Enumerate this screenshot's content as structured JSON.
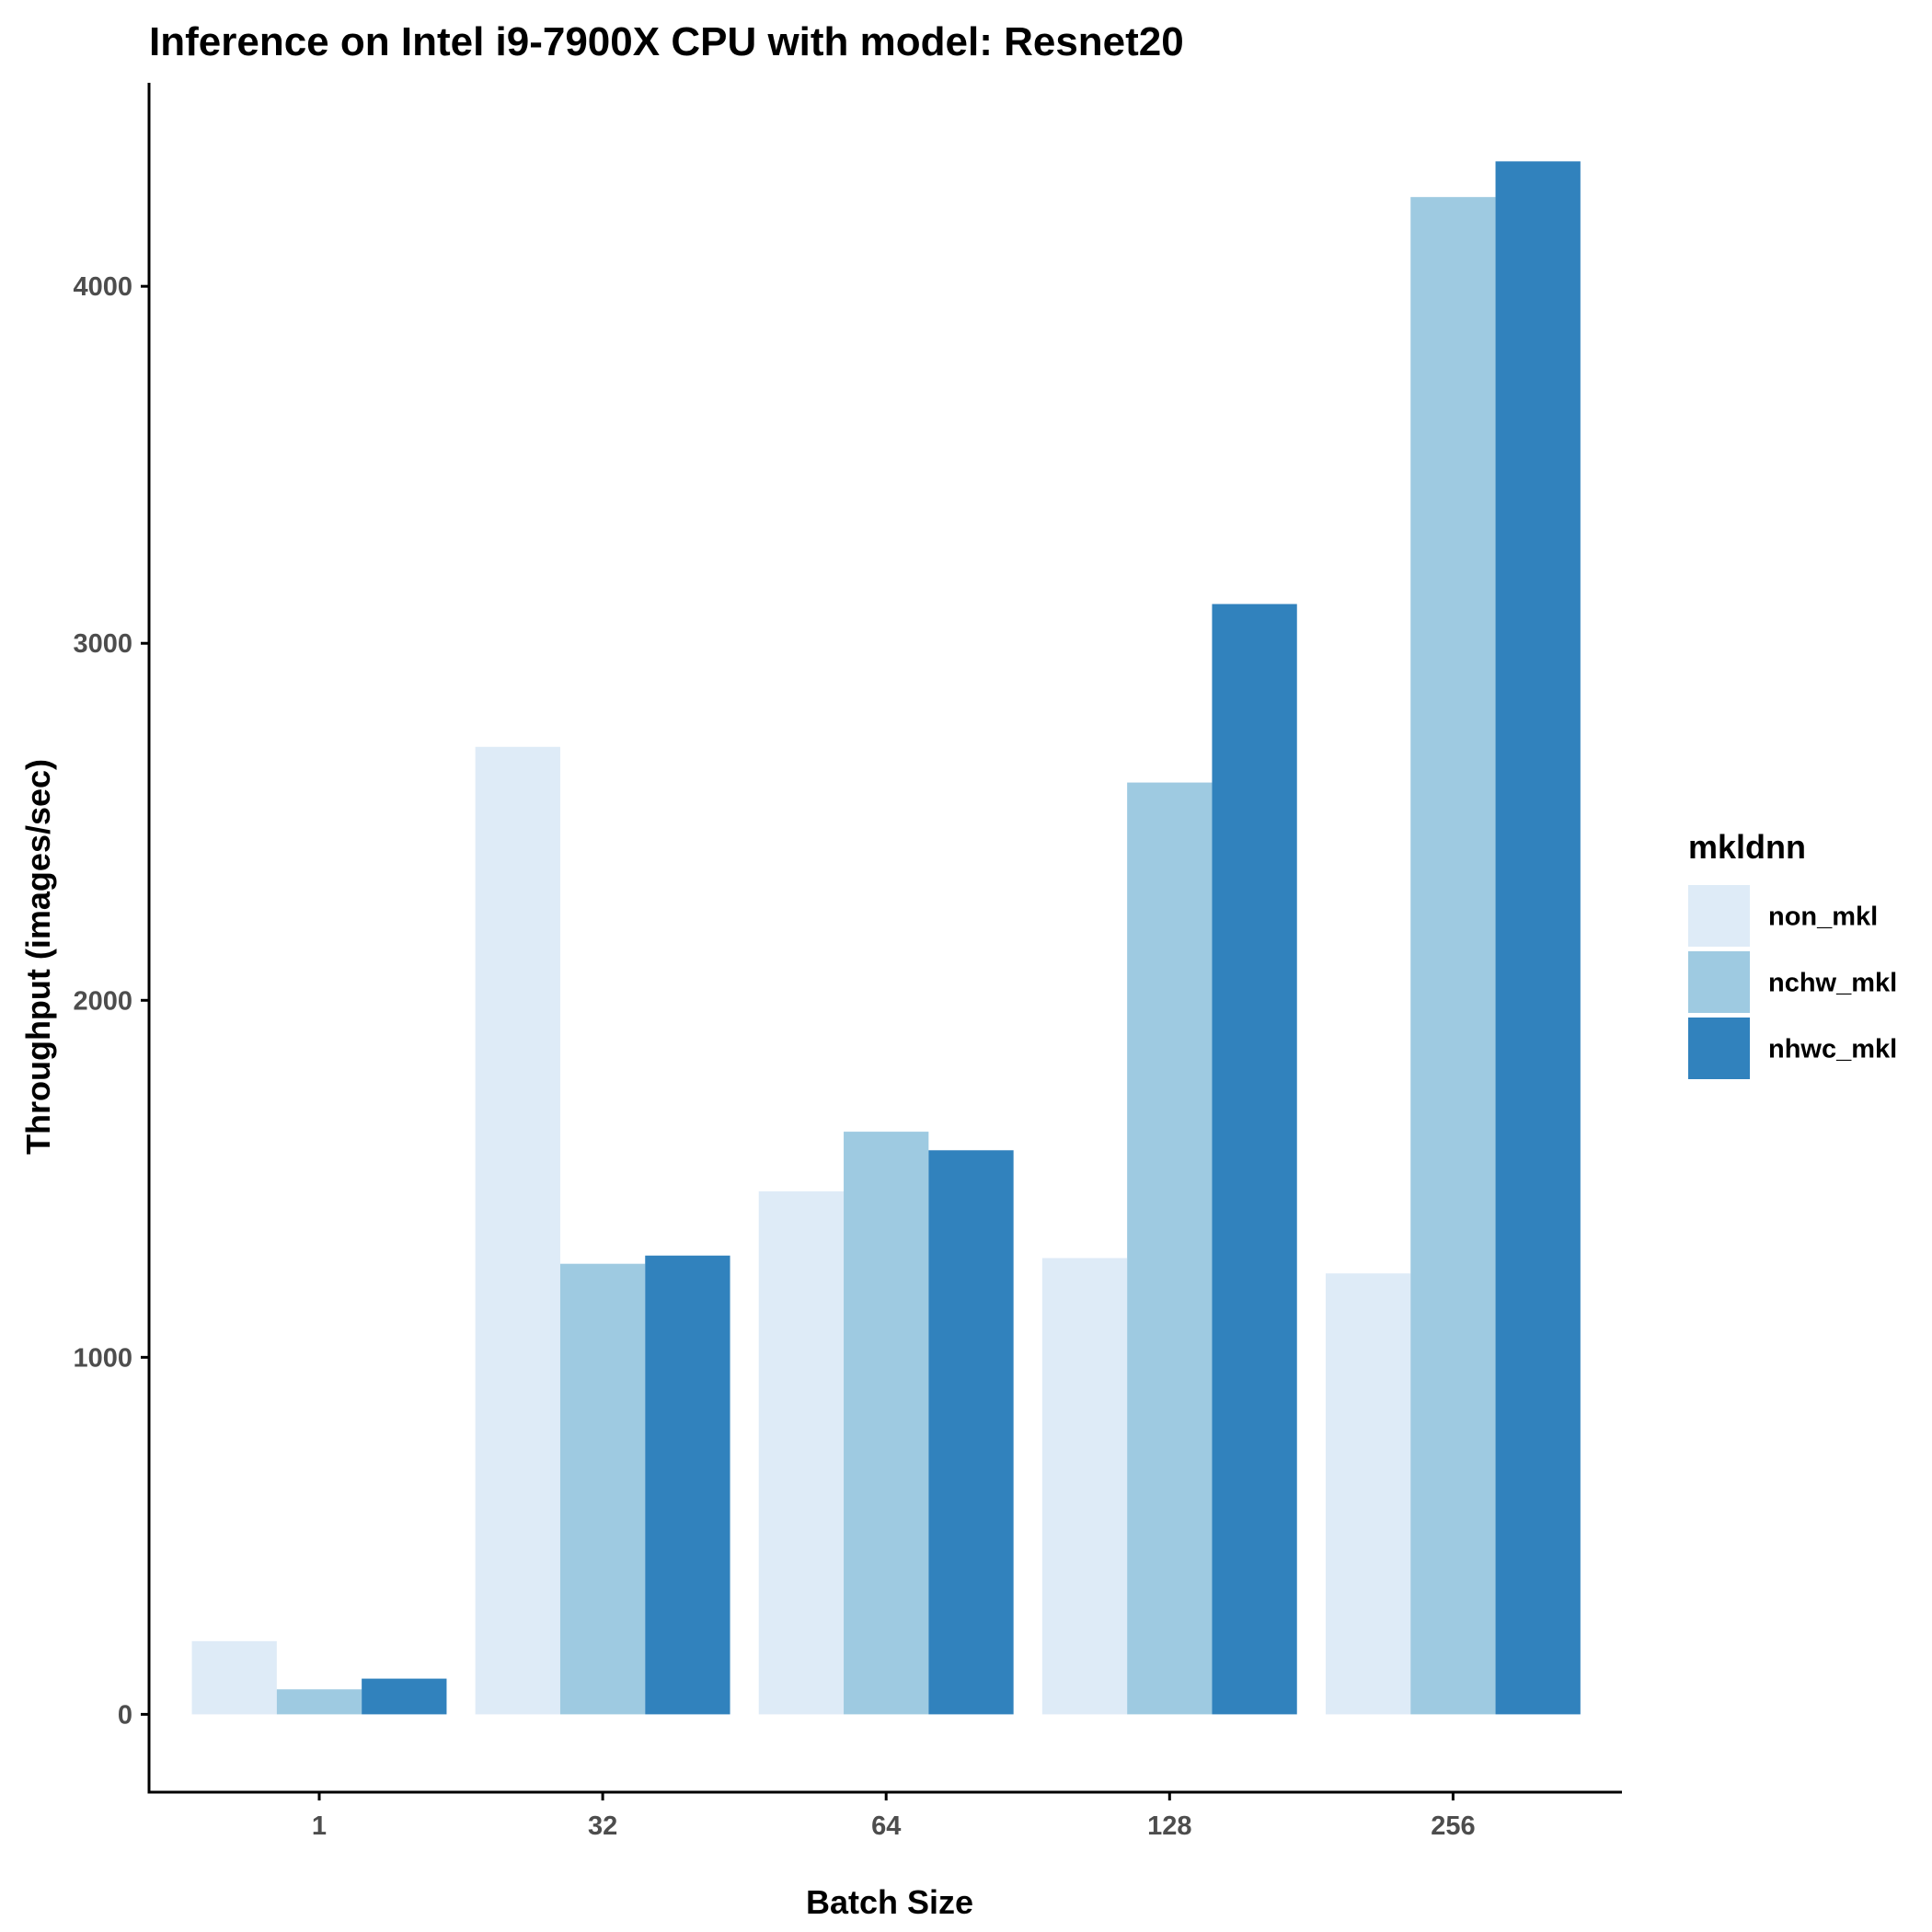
{
  "chart_data": {
    "type": "bar",
    "title": "Inference on Intel i9-7900X CPU with model: Resnet20",
    "xlabel": "Batch Size",
    "ylabel": "Throughput (images/sec)",
    "categories": [
      "1",
      "32",
      "64",
      "128",
      "256"
    ],
    "series": [
      {
        "name": "non_mkl",
        "color": "#deebf7",
        "values": [
          205,
          2710,
          1465,
          1278,
          1235
        ]
      },
      {
        "name": "nchw_mkl",
        "color": "#9ecae1",
        "values": [
          70,
          1262,
          1632,
          2610,
          4250
        ]
      },
      {
        "name": "nhwc_mkl",
        "color": "#3182bd",
        "values": [
          100,
          1285,
          1580,
          3110,
          4350
        ]
      }
    ],
    "yticks": [
      0,
      1000,
      2000,
      3000,
      4000
    ],
    "ylim": [
      -218,
      4570
    ],
    "legend": {
      "title": "mkldnn",
      "position": "right"
    },
    "grid": false
  }
}
